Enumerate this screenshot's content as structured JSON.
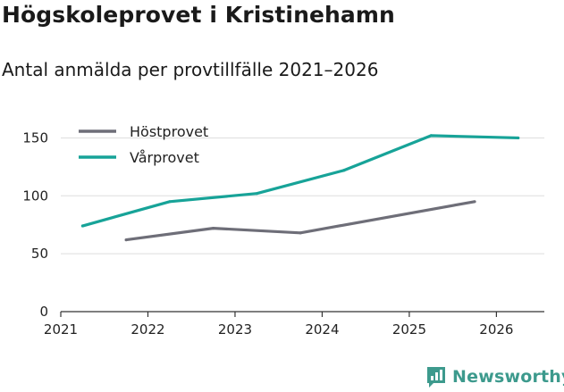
{
  "title": "Högskoleprovet i Kristinehamn",
  "subtitle": "Antal anmälda per provtillfälle 2021–2026",
  "brand": {
    "name": "Newsworthy",
    "icon": "newsworthy-logo-icon",
    "color": "#3d9a8d"
  },
  "chart_data": {
    "type": "line",
    "title": "Högskoleprovet i Kristinehamn",
    "subtitle": "Antal anmälda per provtillfälle 2021–2026",
    "xlabel": "",
    "ylabel": "",
    "x_ticks": [
      "2021",
      "2022",
      "2023",
      "2024",
      "2025",
      "2026"
    ],
    "y_ticks": [
      "0",
      "50",
      "100",
      "150"
    ],
    "xlim": [
      2021,
      2026.55
    ],
    "ylim": [
      0,
      165
    ],
    "grid": true,
    "legend_position": "top-left",
    "series": [
      {
        "name": "Höstprovet",
        "color": "#6e6e78",
        "x": [
          2021.75,
          2022.75,
          2023.75,
          2025.75
        ],
        "y": [
          62,
          72,
          68,
          95
        ]
      },
      {
        "name": "Vårprovet",
        "color": "#17a398",
        "x": [
          2021.25,
          2022.25,
          2023.25,
          2024.25,
          2025.25,
          2026.25
        ],
        "y": [
          74,
          95,
          102,
          122,
          152,
          150
        ]
      }
    ]
  }
}
